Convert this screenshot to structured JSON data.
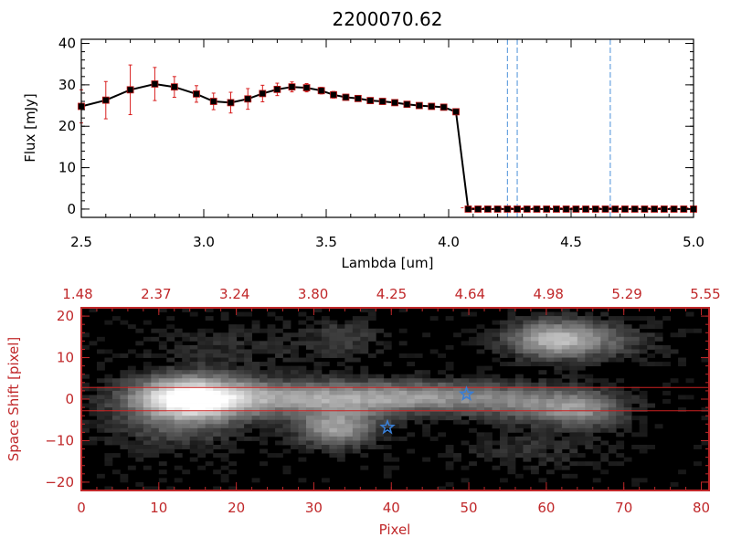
{
  "chart_data": [
    {
      "type": "line",
      "title": "2200070.62",
      "xlabel": "Lambda [um]",
      "ylabel": "Flux [mJy]",
      "xlim": [
        2.5,
        5.0
      ],
      "ylim": [
        -2,
        41
      ],
      "x_ticks": [
        2.5,
        3.0,
        3.5,
        4.0,
        4.5,
        5.0
      ],
      "x_tick_labels": [
        "2.5",
        "3.0",
        "3.5",
        "4.0",
        "4.5",
        "5.0"
      ],
      "y_ticks": [
        0,
        10,
        20,
        30,
        40
      ],
      "y_tick_labels": [
        "0",
        "10",
        "20",
        "30",
        "40"
      ],
      "grid": false,
      "colors": {
        "line": "#000000",
        "marker": "#000000",
        "marker_fill": "#c01818",
        "error_bar": "#d81e1e",
        "vline": "#4a90d9"
      },
      "series": [
        {
          "x": [
            2.5,
            2.6,
            2.7,
            2.8,
            2.88,
            2.97,
            3.04,
            3.11,
            3.18,
            3.24,
            3.3,
            3.36,
            3.42,
            3.48,
            3.53,
            3.58,
            3.63,
            3.68,
            3.73,
            3.78,
            3.83,
            3.88,
            3.93,
            3.98,
            4.03,
            4.08,
            4.12,
            4.16,
            4.2,
            4.24,
            4.28,
            4.32,
            4.36,
            4.4,
            4.44,
            4.48,
            4.52,
            4.56,
            4.6,
            4.64,
            4.68,
            4.72,
            4.76,
            4.8,
            4.84,
            4.88,
            4.92,
            4.96,
            5.0
          ],
          "y": [
            24.8,
            26.3,
            28.8,
            30.2,
            29.5,
            27.8,
            26.0,
            25.7,
            26.6,
            27.9,
            28.9,
            29.5,
            29.3,
            28.6,
            27.6,
            27.0,
            26.7,
            26.2,
            26.0,
            25.7,
            25.3,
            25.0,
            24.8,
            24.6,
            23.5,
            0.0,
            0.0,
            0.0,
            0.0,
            0.0,
            0.0,
            0.0,
            0.0,
            0.0,
            0.0,
            0.0,
            0.0,
            0.0,
            0.0,
            0.0,
            0.0,
            0.0,
            0.0,
            0.0,
            0.0,
            0.0,
            0.0,
            0.0,
            0.0
          ],
          "y_err": [
            4.0,
            4.5,
            6.0,
            4.0,
            2.5,
            2.0,
            2.0,
            2.5,
            2.5,
            2.0,
            1.5,
            1.2,
            1.0,
            0.8,
            0.8,
            0.7,
            0.7,
            0.7,
            0.7,
            0.7,
            0.7,
            0.6,
            0.6,
            0.6,
            0.6,
            0.3,
            0.3,
            0.3,
            0.3,
            0.3,
            0.3,
            0.3,
            0.3,
            0.3,
            0.3,
            0.3,
            0.3,
            0.3,
            0.3,
            0.3,
            0.3,
            0.3,
            0.3,
            0.3,
            0.3,
            0.3,
            0.3,
            0.3,
            0.3
          ]
        }
      ],
      "vlines": [
        4.24,
        4.28,
        4.66
      ]
    },
    {
      "type": "heatmap",
      "xlabel": "Pixel",
      "ylabel": "Space Shift [pixel]",
      "xlim": [
        0,
        81
      ],
      "ylim": [
        -22,
        22
      ],
      "x_ticks": [
        0,
        10,
        20,
        30,
        40,
        50,
        60,
        70,
        80
      ],
      "x_tick_labels": [
        "0",
        "10",
        "20",
        "30",
        "40",
        "50",
        "60",
        "70",
        "80"
      ],
      "y_ticks": [
        -20,
        -10,
        0,
        10,
        20
      ],
      "y_tick_labels": [
        "−20",
        "−10",
        "0",
        "10",
        "20"
      ],
      "top_axis_tick_labels": [
        "1.48",
        "2.37",
        "3.24",
        "3.80",
        "4.25",
        "4.64",
        "4.98",
        "5.29",
        "5.55"
      ],
      "grid": false,
      "colors": {
        "axis": "#c0282a",
        "background": "#000000",
        "marker": "#3a7fd6",
        "hline": "#cc2020"
      },
      "hlines": [
        2.8,
        -2.8
      ],
      "markers": [
        {
          "x": 49.7,
          "y": 1.2,
          "symbol": "star"
        },
        {
          "x": 39.5,
          "y": -6.8,
          "symbol": "star"
        }
      ],
      "blobs": [
        {
          "x": 14.0,
          "y": 0.2,
          "sx": 5.0,
          "sy": 3.5,
          "amp": 1.0
        },
        {
          "x": 30.0,
          "y": 0.2,
          "sx": 12.0,
          "sy": 2.8,
          "amp": 0.55
        },
        {
          "x": 49.0,
          "y": 0.5,
          "sx": 9.0,
          "sy": 2.5,
          "amp": 0.32
        },
        {
          "x": 33.0,
          "y": -7.0,
          "sx": 3.5,
          "sy": 3.0,
          "amp": 0.55
        },
        {
          "x": 61.0,
          "y": 14.5,
          "sx": 4.0,
          "sy": 3.0,
          "amp": 0.55
        },
        {
          "x": 66.0,
          "y": 14.0,
          "sx": 6.0,
          "sy": 3.0,
          "amp": 0.22
        },
        {
          "x": 64.5,
          "y": -2.5,
          "sx": 4.0,
          "sy": 3.0,
          "amp": 0.45
        },
        {
          "x": 57.0,
          "y": -2.0,
          "sx": 4.0,
          "sy": 2.5,
          "amp": 0.2
        },
        {
          "x": 34.0,
          "y": 15.0,
          "sx": 3.0,
          "sy": 3.0,
          "amp": 0.16
        },
        {
          "x": 12.0,
          "y": -7.0,
          "sx": 6.0,
          "sy": 4.0,
          "amp": 0.18
        },
        {
          "x": 58.0,
          "y": -12.0,
          "sx": 6.0,
          "sy": 3.0,
          "amp": 0.12
        },
        {
          "x": 20.0,
          "y": 12.0,
          "sx": 8.0,
          "sy": 4.0,
          "amp": 0.1
        }
      ]
    }
  ]
}
